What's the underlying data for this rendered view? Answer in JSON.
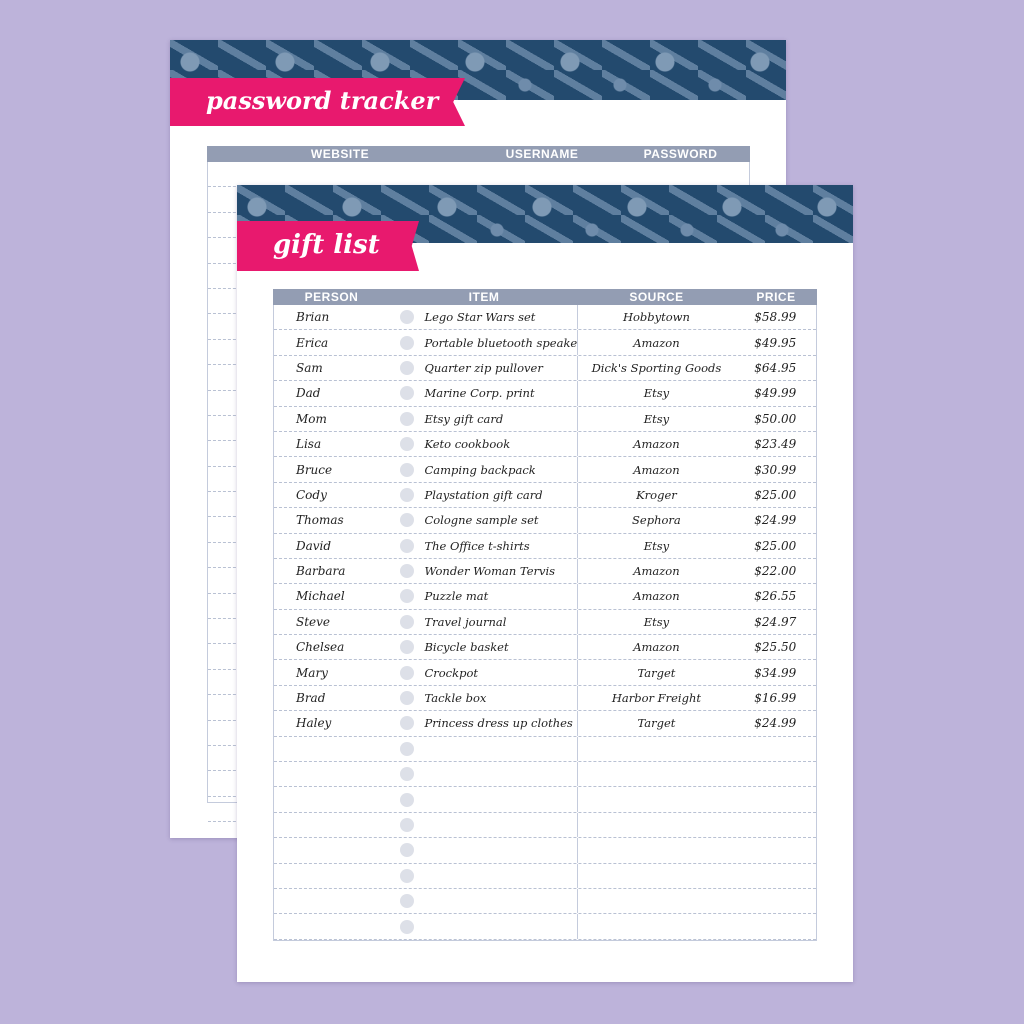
{
  "back_page": {
    "banner": "password tracker",
    "columns": [
      "WEBSITE",
      "USERNAME",
      "PASSWORD"
    ]
  },
  "front_page": {
    "banner": "gift list",
    "columns": [
      "PERSON",
      "ITEM",
      "SOURCE",
      "PRICE"
    ],
    "rows": [
      {
        "person": "Brian",
        "item": "Lego Star Wars set",
        "source": "Hobbytown",
        "price": "$58.99"
      },
      {
        "person": "Erica",
        "item": "Portable bluetooth speaker",
        "source": "Amazon",
        "price": "$49.95"
      },
      {
        "person": "Sam",
        "item": "Quarter zip pullover",
        "source": "Dick's Sporting Goods",
        "price": "$64.95"
      },
      {
        "person": "Dad",
        "item": "Marine Corp. print",
        "source": "Etsy",
        "price": "$49.99"
      },
      {
        "person": "Mom",
        "item": "Etsy gift card",
        "source": "Etsy",
        "price": "$50.00"
      },
      {
        "person": "Lisa",
        "item": "Keto cookbook",
        "source": "Amazon",
        "price": "$23.49"
      },
      {
        "person": "Bruce",
        "item": "Camping backpack",
        "source": "Amazon",
        "price": "$30.99"
      },
      {
        "person": "Cody",
        "item": "Playstation gift card",
        "source": "Kroger",
        "price": "$25.00"
      },
      {
        "person": "Thomas",
        "item": "Cologne sample set",
        "source": "Sephora",
        "price": "$24.99"
      },
      {
        "person": "David",
        "item": "The Office t-shirts",
        "source": "Etsy",
        "price": "$25.00"
      },
      {
        "person": "Barbara",
        "item": "Wonder Woman Tervis",
        "source": "Amazon",
        "price": "$22.00"
      },
      {
        "person": "Michael",
        "item": "Puzzle mat",
        "source": "Amazon",
        "price": "$26.55"
      },
      {
        "person": "Steve",
        "item": "Travel journal",
        "source": "Etsy",
        "price": "$24.97"
      },
      {
        "person": "Chelsea",
        "item": "Bicycle basket",
        "source": "Amazon",
        "price": "$25.50"
      },
      {
        "person": "Mary",
        "item": "Crockpot",
        "source": "Target",
        "price": "$34.99"
      },
      {
        "person": "Brad",
        "item": "Tackle box",
        "source": "Harbor Freight",
        "price": "$16.99"
      },
      {
        "person": "Haley",
        "item": "Princess dress up clothes",
        "source": "Target",
        "price": "$24.99"
      }
    ],
    "empty_rows": 8
  },
  "colors": {
    "background": "#bdb3da",
    "header_band": "#234a6e",
    "banner": "#e8196e",
    "table_header": "#939db3"
  }
}
